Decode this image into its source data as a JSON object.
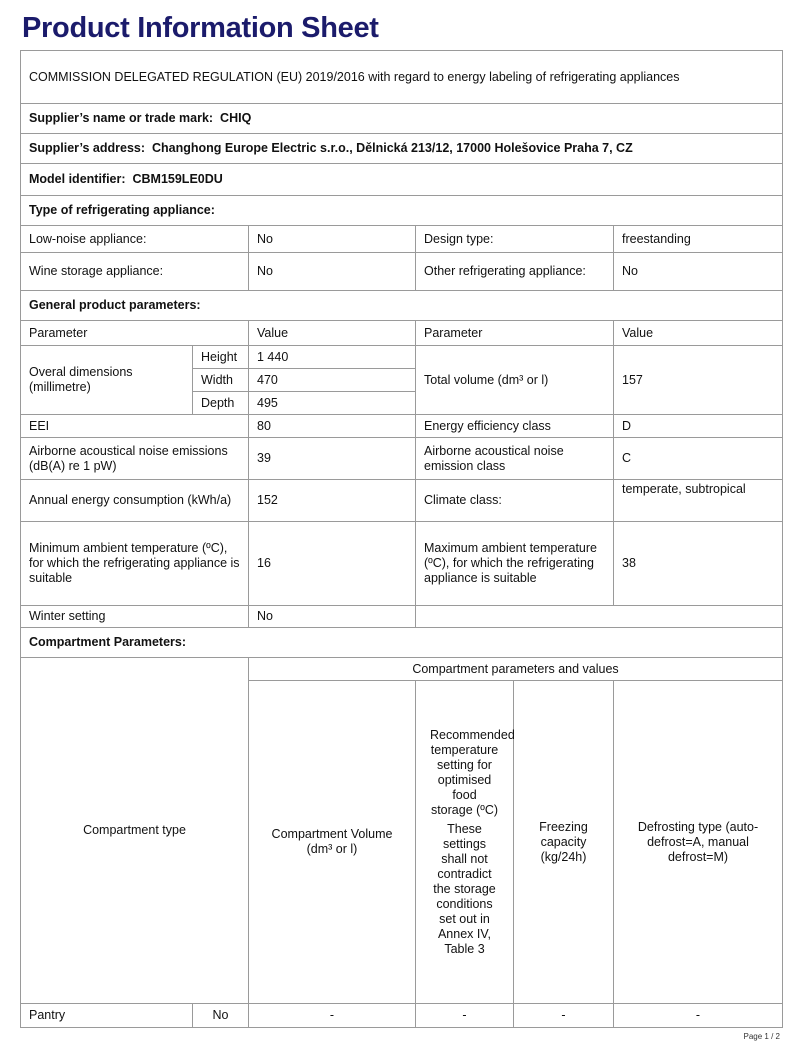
{
  "title": "Product Information Sheet",
  "regulation": "COMMISSION DELEGATED REGULATION (EU) 2019/2016 with regard to energy labeling of refrigerating appliances",
  "supplier_name": {
    "label": "Supplier’s name or trade mark:",
    "value": "CHIQ"
  },
  "supplier_address": {
    "label": "Supplier’s address:",
    "value": "Changhong Europe Electric s.r.o., Dělnická 213/12, 17000 Holešovice Praha 7, CZ"
  },
  "model": {
    "label": "Model identifier:",
    "value": "CBM159LE0DU"
  },
  "type_heading": "Type of refrigerating appliance:",
  "type_rows": [
    {
      "l1": "Low-noise appliance:",
      "v1": "No",
      "l2": "Design type:",
      "v2": "freestanding"
    },
    {
      "l1": "Wine storage appliance:",
      "v1": "No",
      "l2": "Other refrigerating appliance:",
      "v2": "No"
    }
  ],
  "general_heading": "General product parameters:",
  "gp_header": {
    "p1": "Parameter",
    "v1": "Value",
    "p2": "Parameter",
    "v2": "Value"
  },
  "dimensions": {
    "label": "Overal dimensions (millimetre)",
    "height_label": "Height",
    "height": "1 440",
    "width_label": "Width",
    "width": "470",
    "depth_label": "Depth",
    "depth": "495",
    "total_volume_label": "Total volume (dm³ or l)",
    "total_volume": "157"
  },
  "gp_rows": [
    {
      "l1": "EEI",
      "v1": "80",
      "l2": "Energy efficiency class",
      "v2": "D"
    },
    {
      "l1": "Airborne acoustical noise emissions (dB(A) re 1 pW)",
      "v1": "39",
      "l2": "Airborne acoustical noise emission class",
      "v2": "C"
    },
    {
      "l1": "Annual energy consumption (kWh/a)",
      "v1": "152",
      "l2": "Climate class:",
      "v2": "temperate, subtropical"
    },
    {
      "l1": "Minimum ambient temperature (ºC), for which the refrigerating appliance is suitable",
      "v1": "16",
      "l2": "Maximum ambient temperature (ºC), for which the refrigerating appliance is suitable",
      "v2": "38"
    },
    {
      "l1": "Winter setting",
      "v1": "No",
      "l2": "",
      "v2": ""
    }
  ],
  "compartment_heading": "Compartment Parameters:",
  "comp_header": {
    "type": "Compartment type",
    "group": "Compartment parameters and values",
    "volume": "Compartment Volume (dm³ or l)",
    "temp1": "Recommended temperature setting for optimised food storage (ºC)",
    "temp2": "These settings shall not contradict the storage conditions set out in Annex IV, Table 3",
    "freezing": "Freezing capacity (kg/24h)",
    "defrost": "Defrosting type (auto-defrost=A, manual defrost=M)"
  },
  "comp_rows": [
    {
      "type": "Pantry",
      "present": "No",
      "volume": "-",
      "temp": "-",
      "freezing": "-",
      "defrost": "-"
    }
  ],
  "footer": "Page 1 / 2"
}
